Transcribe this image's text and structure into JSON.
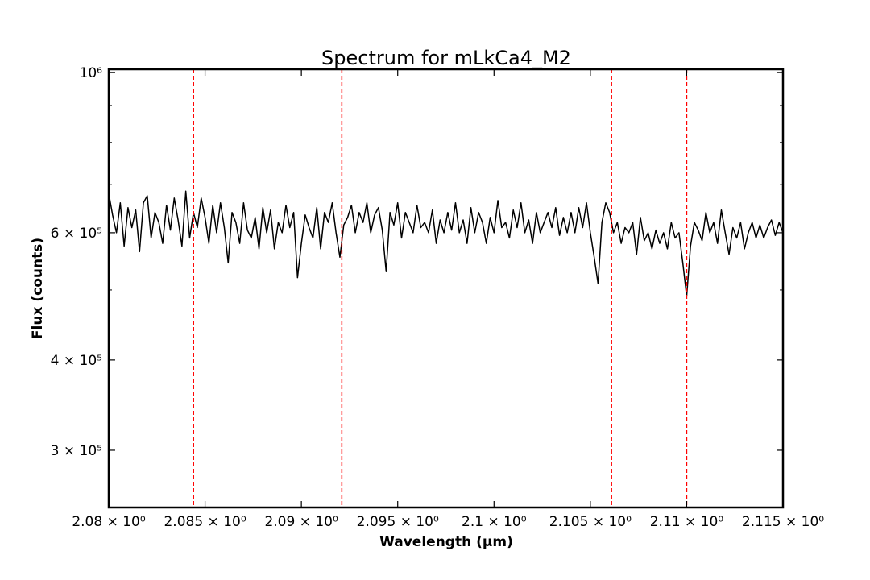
{
  "chart_data": {
    "type": "line",
    "title": "Spectrum for mLkCa4_M2",
    "xlabel": "Wavelength (µm)",
    "ylabel": "Flux (counts)",
    "xlim": [
      2.08,
      2.115
    ],
    "ylim": [
      250000,
      1010000
    ],
    "yscale": "log",
    "grid": false,
    "x_ticks": [
      {
        "value": 2.08,
        "label": "2.08 × 10⁰"
      },
      {
        "value": 2.085,
        "label": "2.085 × 10⁰"
      },
      {
        "value": 2.09,
        "label": "2.09 × 10⁰"
      },
      {
        "value": 2.095,
        "label": "2.095 × 10⁰"
      },
      {
        "value": 2.1,
        "label": "2.1 × 10⁰"
      },
      {
        "value": 2.105,
        "label": "2.105 × 10⁰"
      },
      {
        "value": 2.11,
        "label": "2.11 × 10⁰"
      },
      {
        "value": 2.115,
        "label": "2.115 × 10⁰"
      }
    ],
    "y_ticks": [
      {
        "value": 300000,
        "label": "3 × 10⁵"
      },
      {
        "value": 400000,
        "label": "4 × 10⁵"
      },
      {
        "value": 600000,
        "label": "6 × 10⁵"
      },
      {
        "value": 1000000,
        "label": "10⁶"
      }
    ],
    "y_minor_ticks": [
      500000,
      700000,
      800000,
      900000
    ],
    "series": [
      {
        "color": "#000000",
        "x": [
          2.08,
          2.0802,
          2.0804,
          2.0806,
          2.0808,
          2.081,
          2.0812,
          2.0814,
          2.0816,
          2.0818,
          2.082,
          2.0822,
          2.0824,
          2.0826,
          2.0828,
          2.083,
          2.0832,
          2.0834,
          2.0836,
          2.0838,
          2.084,
          2.0842,
          2.0844,
          2.0846,
          2.0848,
          2.085,
          2.0852,
          2.0854,
          2.0856,
          2.0858,
          2.086,
          2.0862,
          2.0864,
          2.0866,
          2.0868,
          2.087,
          2.0872,
          2.0874,
          2.0876,
          2.0878,
          2.088,
          2.0882,
          2.0884,
          2.0886,
          2.0888,
          2.089,
          2.0892,
          2.0894,
          2.0896,
          2.0898,
          2.09,
          2.0902,
          2.0904,
          2.0906,
          2.0908,
          2.091,
          2.0912,
          2.0914,
          2.0916,
          2.0918,
          2.092,
          2.0922,
          2.0924,
          2.0926,
          2.0928,
          2.093,
          2.0932,
          2.0934,
          2.0936,
          2.0938,
          2.094,
          2.0942,
          2.0944,
          2.0946,
          2.0948,
          2.095,
          2.0952,
          2.0954,
          2.0956,
          2.0958,
          2.096,
          2.0962,
          2.0964,
          2.0966,
          2.0968,
          2.097,
          2.0972,
          2.0974,
          2.0976,
          2.0978,
          2.098,
          2.0982,
          2.0984,
          2.0986,
          2.0988,
          2.099,
          2.0992,
          2.0994,
          2.0996,
          2.0998,
          2.1,
          2.1002,
          2.1004,
          2.1006,
          2.1008,
          2.101,
          2.1012,
          2.1014,
          2.1016,
          2.1018,
          2.102,
          2.1022,
          2.1024,
          2.1026,
          2.1028,
          2.103,
          2.1032,
          2.1034,
          2.1036,
          2.1038,
          2.104,
          2.1042,
          2.1044,
          2.1046,
          2.1048,
          2.105,
          2.1052,
          2.1054,
          2.1056,
          2.1058,
          2.106,
          2.1062,
          2.1064,
          2.1066,
          2.1068,
          2.107,
          2.1072,
          2.1074,
          2.1076,
          2.1078,
          2.108,
          2.1082,
          2.1084,
          2.1086,
          2.1088,
          2.109,
          2.1092,
          2.1094,
          2.1096,
          2.1098,
          2.11,
          2.1102,
          2.1104,
          2.1106,
          2.1108,
          2.111,
          2.1112,
          2.1114,
          2.1116,
          2.1118,
          2.112,
          2.1122,
          2.1124,
          2.1126,
          2.1128,
          2.113,
          2.1132,
          2.1134,
          2.1136,
          2.1138,
          2.114,
          2.1142,
          2.1144,
          2.1146,
          2.1148,
          2.115
        ],
        "y": [
          680000,
          635000,
          600000,
          660000,
          575000,
          650000,
          610000,
          645000,
          565000,
          660000,
          675000,
          590000,
          640000,
          620000,
          580000,
          655000,
          605000,
          670000,
          625000,
          575000,
          685000,
          590000,
          640000,
          610000,
          670000,
          630000,
          580000,
          655000,
          600000,
          660000,
          610000,
          545000,
          640000,
          620000,
          580000,
          660000,
          605000,
          590000,
          630000,
          570000,
          650000,
          600000,
          645000,
          570000,
          620000,
          600000,
          655000,
          610000,
          640000,
          520000,
          580000,
          635000,
          610000,
          590000,
          650000,
          570000,
          640000,
          620000,
          660000,
          600000,
          555000,
          615000,
          630000,
          655000,
          600000,
          640000,
          620000,
          660000,
          600000,
          635000,
          650000,
          605000,
          530000,
          640000,
          615000,
          660000,
          590000,
          640000,
          620000,
          600000,
          655000,
          610000,
          620000,
          600000,
          645000,
          580000,
          625000,
          600000,
          640000,
          605000,
          660000,
          600000,
          625000,
          580000,
          650000,
          600000,
          640000,
          620000,
          580000,
          630000,
          600000,
          665000,
          610000,
          620000,
          590000,
          645000,
          610000,
          660000,
          600000,
          625000,
          580000,
          640000,
          600000,
          620000,
          640000,
          610000,
          650000,
          595000,
          630000,
          600000,
          640000,
          600000,
          650000,
          610000,
          660000,
          600000,
          555000,
          510000,
          620000,
          660000,
          640000,
          600000,
          620000,
          580000,
          610000,
          600000,
          620000,
          560000,
          630000,
          585000,
          600000,
          570000,
          605000,
          580000,
          600000,
          570000,
          620000,
          590000,
          600000,
          545000,
          490000,
          575000,
          620000,
          605000,
          585000,
          640000,
          600000,
          620000,
          580000,
          645000,
          600000,
          560000,
          610000,
          590000,
          620000,
          570000,
          600000,
          620000,
          590000,
          615000,
          590000,
          610000,
          625000,
          595000,
          620000,
          600000
        ]
      }
    ],
    "reference_lines": [
      {
        "x": 2.0844,
        "color": "#ff0000",
        "style": "dashed"
      },
      {
        "x": 2.0921,
        "color": "#ff0000",
        "style": "dashed"
      },
      {
        "x": 2.1061,
        "color": "#ff0000",
        "style": "dashed"
      },
      {
        "x": 2.11,
        "color": "#ff0000",
        "style": "dashed"
      }
    ]
  }
}
